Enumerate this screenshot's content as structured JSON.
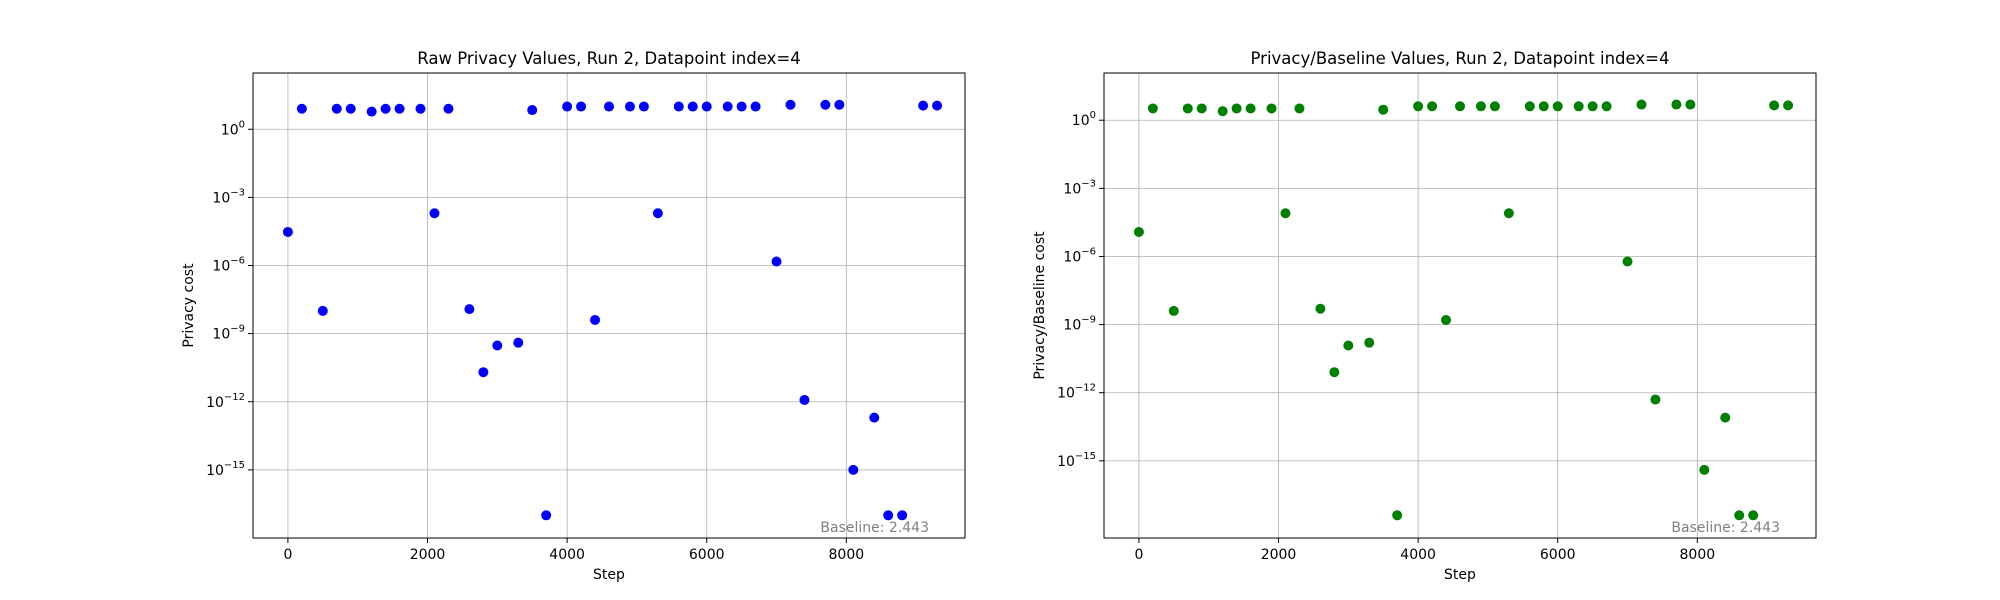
{
  "chart_data": [
    {
      "type": "scatter",
      "title": "Raw Privacy Values, Run 2, Datapoint index=4",
      "xlabel": "Step",
      "ylabel": "Privacy cost",
      "yscale": "log",
      "xlim": [
        -500,
        9700
      ],
      "ylim": [
        1e-18,
        300
      ],
      "xticks": [
        0,
        2000,
        4000,
        6000,
        8000
      ],
      "yticks": [
        1,
        0.001,
        1e-06,
        1e-09,
        1e-12,
        1e-15
      ],
      "ytick_labels": [
        {
          "base": "10",
          "exp": "0"
        },
        {
          "base": "10",
          "exp": "−3"
        },
        {
          "base": "10",
          "exp": "−6"
        },
        {
          "base": "10",
          "exp": "−9"
        },
        {
          "base": "10",
          "exp": "−12"
        },
        {
          "base": "10",
          "exp": "−15"
        }
      ],
      "grid": true,
      "marker_color": "#0000ff",
      "annotation": "Baseline: 2.443",
      "points": [
        [
          0,
          3e-05
        ],
        [
          200,
          8
        ],
        [
          500,
          1e-08
        ],
        [
          700,
          8
        ],
        [
          900,
          8
        ],
        [
          1200,
          6
        ],
        [
          1400,
          8
        ],
        [
          1600,
          8
        ],
        [
          1900,
          8
        ],
        [
          2100,
          0.0002
        ],
        [
          2300,
          8
        ],
        [
          2600,
          1.2e-08
        ],
        [
          2800,
          2e-11
        ],
        [
          3000,
          3e-10
        ],
        [
          3300,
          4e-10
        ],
        [
          3500,
          7
        ],
        [
          3700,
          1e-17
        ],
        [
          4000,
          10
        ],
        [
          4200,
          10
        ],
        [
          4400,
          4e-09
        ],
        [
          4600,
          10
        ],
        [
          4900,
          10
        ],
        [
          5100,
          10
        ],
        [
          5300,
          0.0002
        ],
        [
          5600,
          10
        ],
        [
          5800,
          10
        ],
        [
          6000,
          10
        ],
        [
          6300,
          10
        ],
        [
          6500,
          10
        ],
        [
          6700,
          10
        ],
        [
          7000,
          1.5e-06
        ],
        [
          7200,
          12
        ],
        [
          7400,
          1.2e-12
        ],
        [
          7700,
          12
        ],
        [
          7900,
          12
        ],
        [
          8100,
          1e-15
        ],
        [
          8400,
          2e-13
        ],
        [
          8600,
          1e-17
        ],
        [
          8800,
          1e-17
        ],
        [
          9100,
          11
        ],
        [
          9300,
          11
        ]
      ]
    },
    {
      "type": "scatter",
      "title": "Privacy/Baseline Values, Run 2, Datapoint index=4",
      "xlabel": "Step",
      "ylabel": "Privacy/Baseline cost",
      "yscale": "log",
      "xlim": [
        -500,
        9700
      ],
      "ylim": [
        4e-19,
        120
      ],
      "xticks": [
        0,
        2000,
        4000,
        6000,
        8000
      ],
      "yticks": [
        1,
        0.001,
        1e-06,
        1e-09,
        1e-12,
        1e-15
      ],
      "ytick_labels": [
        {
          "base": "10",
          "exp": "0"
        },
        {
          "base": "10",
          "exp": "−3"
        },
        {
          "base": "10",
          "exp": "−6"
        },
        {
          "base": "10",
          "exp": "−9"
        },
        {
          "base": "10",
          "exp": "−12"
        },
        {
          "base": "10",
          "exp": "−15"
        }
      ],
      "grid": true,
      "marker_color": "#008000",
      "annotation": "Baseline: 2.443",
      "points": [
        [
          0,
          1.2e-05
        ],
        [
          200,
          3.3
        ],
        [
          500,
          4e-09
        ],
        [
          700,
          3.3
        ],
        [
          900,
          3.3
        ],
        [
          1200,
          2.5
        ],
        [
          1400,
          3.3
        ],
        [
          1600,
          3.3
        ],
        [
          1900,
          3.3
        ],
        [
          2100,
          8e-05
        ],
        [
          2300,
          3.3
        ],
        [
          2600,
          5e-09
        ],
        [
          2800,
          8e-12
        ],
        [
          3000,
          1.2e-10
        ],
        [
          3300,
          1.6e-10
        ],
        [
          3500,
          2.9
        ],
        [
          3700,
          4e-18
        ],
        [
          4000,
          4.1
        ],
        [
          4200,
          4.1
        ],
        [
          4400,
          1.6e-09
        ],
        [
          4600,
          4.1
        ],
        [
          4900,
          4.1
        ],
        [
          5100,
          4.1
        ],
        [
          5300,
          8e-05
        ],
        [
          5600,
          4.1
        ],
        [
          5800,
          4.1
        ],
        [
          6000,
          4.1
        ],
        [
          6300,
          4.1
        ],
        [
          6500,
          4.1
        ],
        [
          6700,
          4.1
        ],
        [
          7000,
          6e-07
        ],
        [
          7200,
          4.9
        ],
        [
          7400,
          5e-13
        ],
        [
          7700,
          4.9
        ],
        [
          7900,
          4.9
        ],
        [
          8100,
          4e-16
        ],
        [
          8400,
          8e-14
        ],
        [
          8600,
          4e-18
        ],
        [
          8800,
          4e-18
        ],
        [
          9100,
          4.5
        ],
        [
          9300,
          4.5
        ]
      ]
    }
  ]
}
